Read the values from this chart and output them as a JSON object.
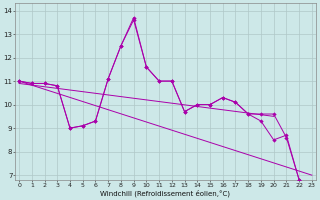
{
  "xlabel": "Windchill (Refroidissement éolien,°C)",
  "background_color": "#cde8e8",
  "line_color": "#aa00aa",
  "grid_color": "#b0c8c8",
  "series1_y": [
    11.0,
    10.9,
    10.9,
    10.8,
    9.0,
    9.1,
    9.3,
    11.1,
    12.5,
    13.6,
    11.6,
    11.0,
    11.0,
    9.7,
    10.0,
    10.0,
    10.3,
    10.1,
    9.6,
    9.3,
    8.5,
    8.7,
    6.8,
    6.6
  ],
  "series2_y": [
    11.0,
    10.9,
    10.9,
    10.8,
    9.0,
    9.1,
    9.3,
    11.1,
    12.5,
    13.7,
    11.6,
    11.0,
    11.0,
    9.7,
    10.0,
    10.0,
    10.3,
    10.1,
    9.6,
    9.6,
    9.6,
    8.6,
    6.8,
    6.6
  ],
  "trend1_x": [
    0,
    23
  ],
  "trend1_y": [
    11.0,
    7.0
  ],
  "trend2_x": [
    0,
    20
  ],
  "trend2_y": [
    10.9,
    9.5
  ],
  "xlim": [
    -0.3,
    23.3
  ],
  "ylim": [
    6.8,
    14.3
  ],
  "yticks": [
    7,
    8,
    9,
    10,
    11,
    12,
    13,
    14
  ],
  "xticks": [
    0,
    1,
    2,
    3,
    4,
    5,
    6,
    7,
    8,
    9,
    10,
    11,
    12,
    13,
    14,
    15,
    16,
    17,
    18,
    19,
    20,
    21,
    22,
    23
  ]
}
